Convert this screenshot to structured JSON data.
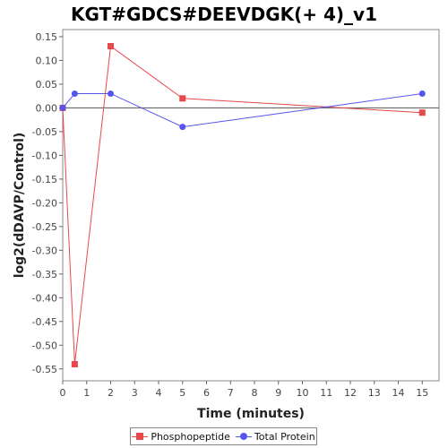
{
  "chart_data": {
    "type": "line",
    "title": "KGT#GDCS#DEEVDGK(+ 4)_v1",
    "xlabel": "Time (minutes)",
    "ylabel": "log2(dDAVP/Control)",
    "xlim": [
      0,
      15.7
    ],
    "ylim": [
      -0.575,
      0.165
    ],
    "xticks": [
      0,
      1,
      2,
      3,
      4,
      5,
      6,
      7,
      8,
      9,
      10,
      11,
      12,
      13,
      14,
      15
    ],
    "yticks": [
      0.15,
      0.1,
      0.05,
      0.0,
      -0.05,
      -0.1,
      -0.15,
      -0.2,
      -0.25,
      -0.3,
      -0.35,
      -0.4,
      -0.45,
      -0.5,
      -0.55
    ],
    "ytick_labels": [
      "0.15",
      "0.10",
      "0.05",
      "0.00",
      "-0.05",
      "-0.10",
      "-0.15",
      "-0.20",
      "-0.25",
      "-0.30",
      "-0.35",
      "-0.40",
      "-0.45",
      "-0.50",
      "-0.55"
    ],
    "zero_line": true,
    "grid": false,
    "legend_position": "bottom",
    "series": [
      {
        "name": "Phosphopeptide",
        "color": "#e8474b",
        "marker": "square",
        "x": [
          0,
          0.5,
          2,
          5,
          15
        ],
        "y": [
          0.0,
          -0.54,
          0.13,
          0.02,
          -0.01
        ]
      },
      {
        "name": "Total Protein",
        "color": "#5555ee",
        "marker": "circle",
        "x": [
          0,
          0.5,
          2,
          5,
          15
        ],
        "y": [
          0.0,
          0.03,
          0.03,
          -0.04,
          0.03
        ]
      }
    ]
  }
}
